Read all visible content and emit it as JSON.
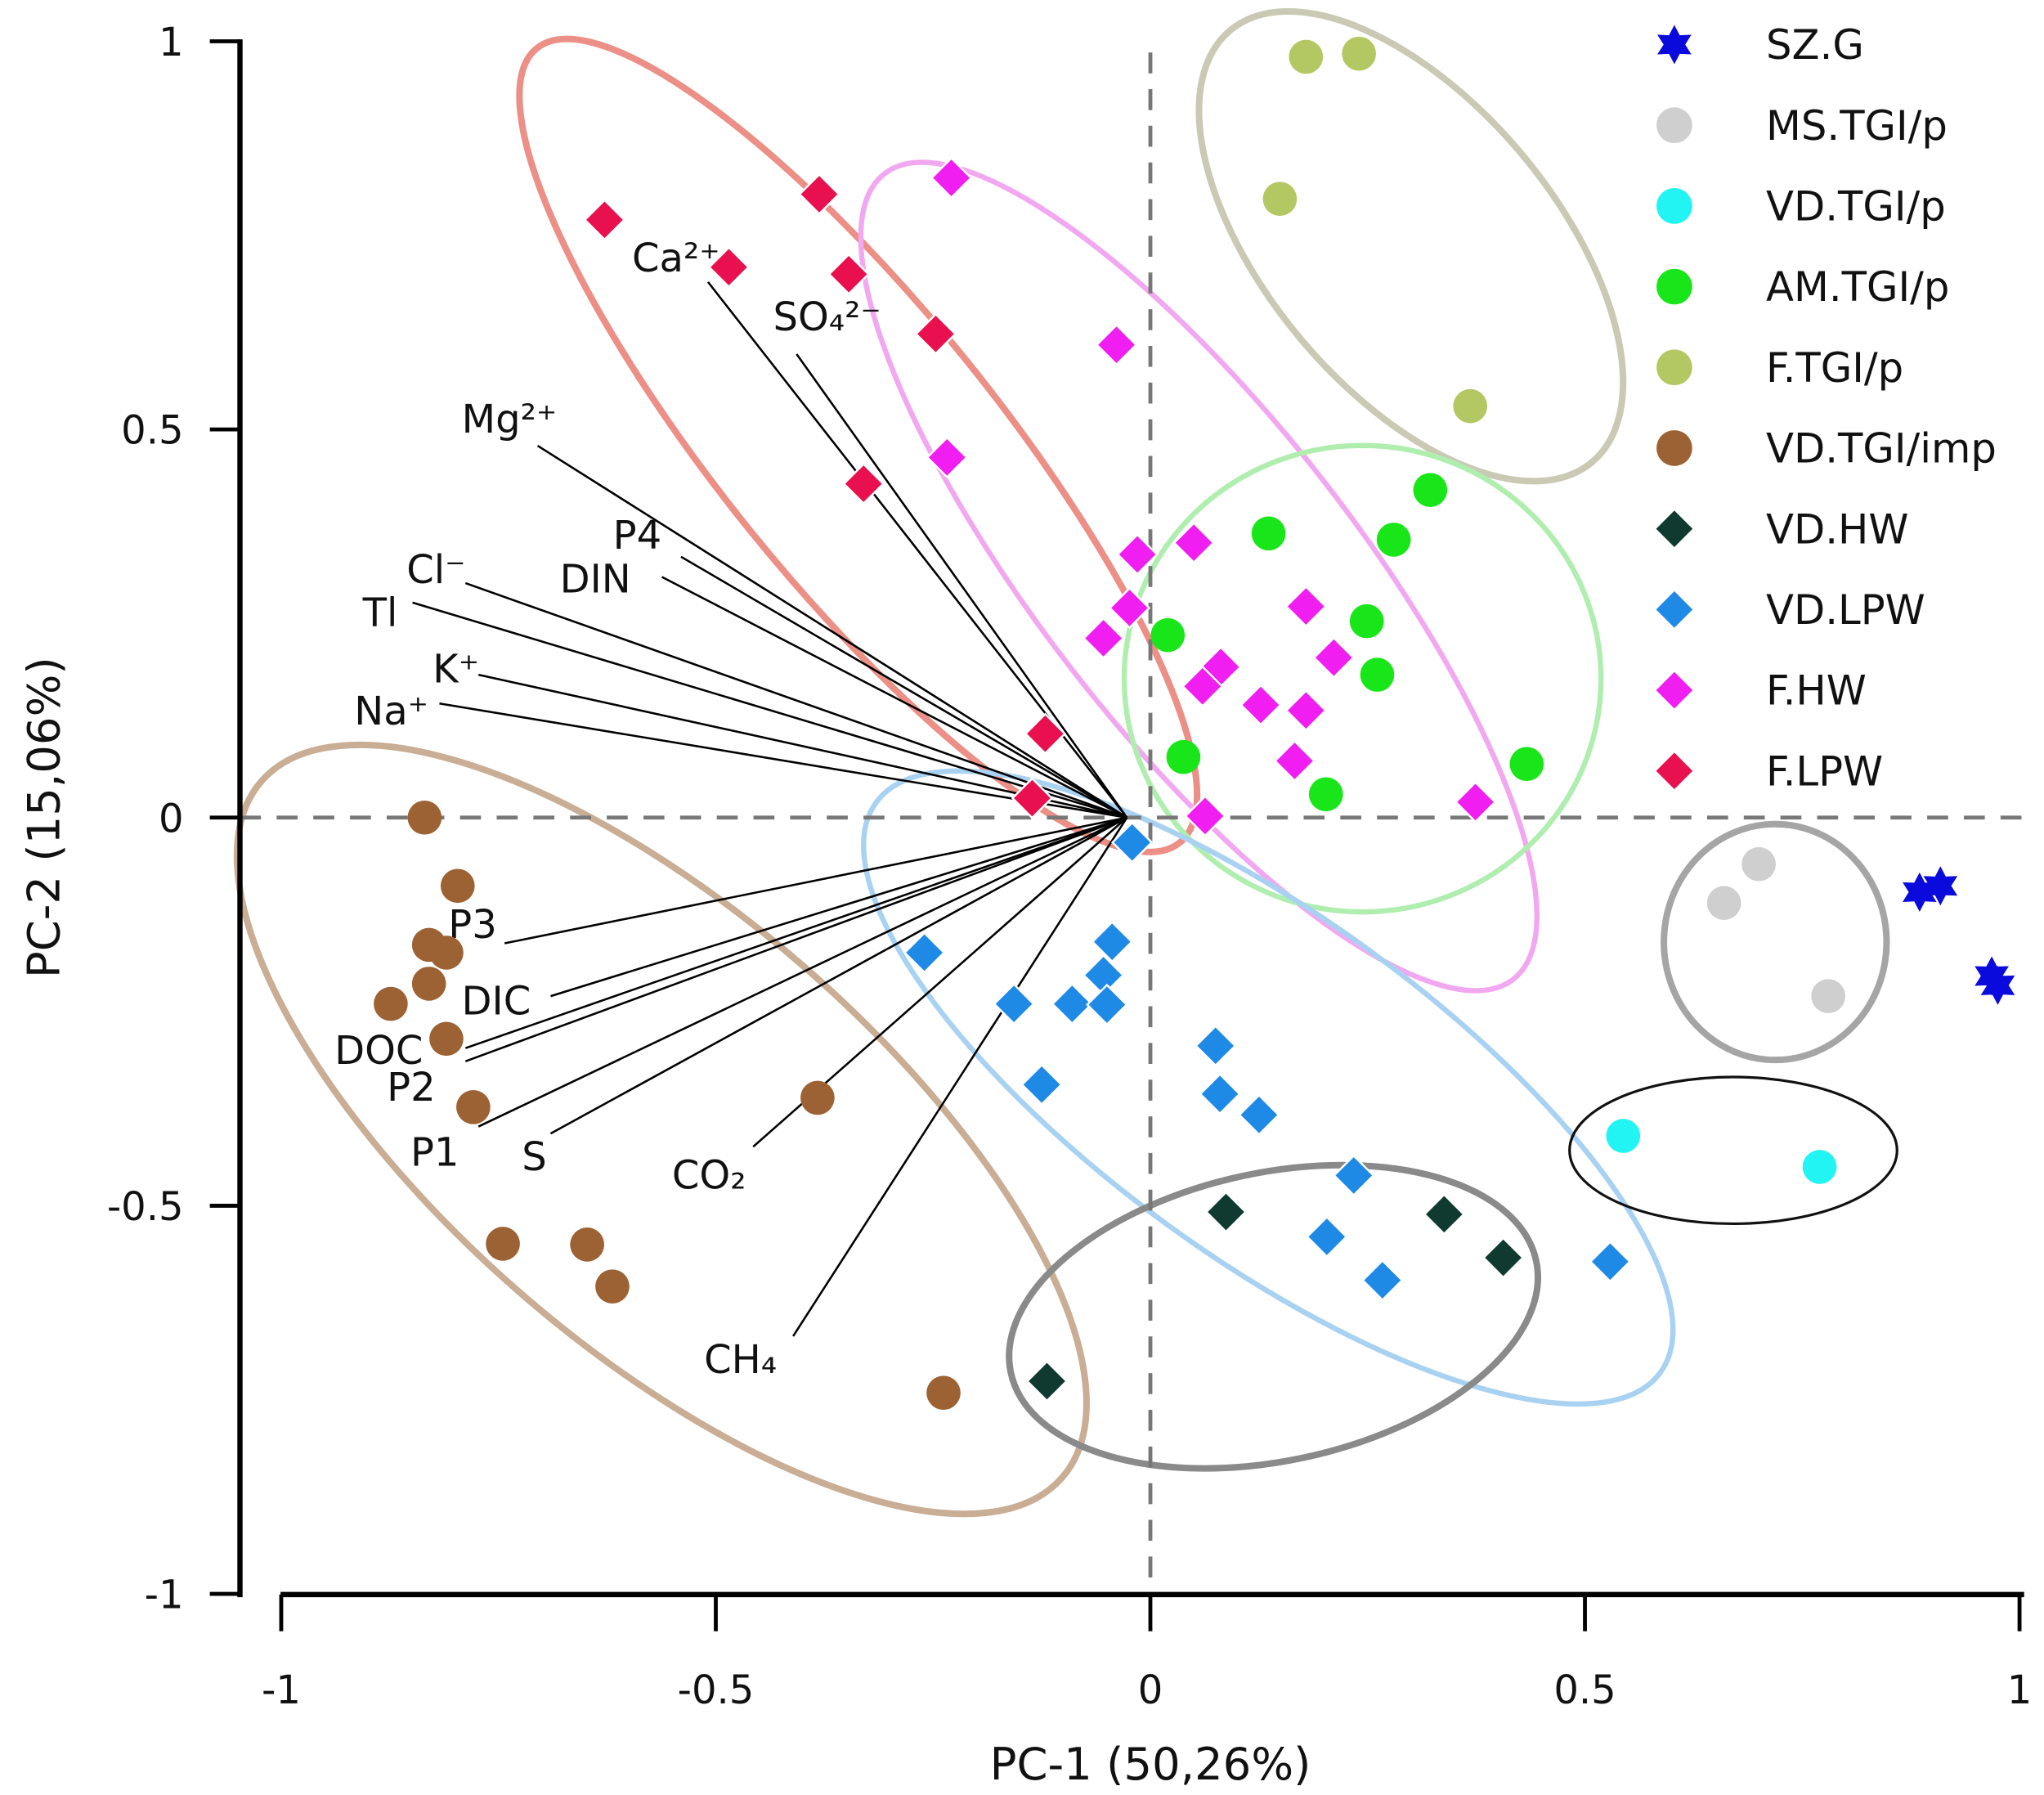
{
  "chart_data": {
    "type": "scatter",
    "title": "",
    "xlabel": "PC-1 (50,26%)",
    "ylabel": "PC-2 (15,06%)",
    "xlim": [
      -1,
      1
    ],
    "ylim": [
      -1,
      1
    ],
    "xticks": [
      "-1",
      "-0.5",
      "0",
      "0.5",
      "1"
    ],
    "yticks": [
      "1",
      "0.5",
      "0",
      "-0.5",
      "-1"
    ],
    "xtick_values": [
      -1,
      -0.5,
      0,
      0.5,
      1
    ],
    "ytick_values": [
      1,
      0.5,
      0,
      -0.5,
      -1
    ],
    "grid": false,
    "legend_position": "top-right",
    "series": [
      {
        "name": "SZ.G",
        "marker": "star",
        "color": "#0a0adc",
        "points": [
          [
            0.885,
            -0.096
          ],
          [
            0.909,
            -0.088
          ],
          [
            0.968,
            -0.204
          ],
          [
            0.975,
            -0.216
          ]
        ]
      },
      {
        "name": "MS.TGI/p",
        "marker": "circle",
        "color": "#cfcfcf",
        "points": [
          [
            0.7,
            -0.06
          ],
          [
            0.66,
            -0.11
          ],
          [
            0.78,
            -0.23
          ]
        ]
      },
      {
        "name": "VD.TGI/p",
        "marker": "circle",
        "color": "#22f4f4",
        "points": [
          [
            0.544,
            -0.41
          ],
          [
            0.77,
            -0.45
          ]
        ]
      },
      {
        "name": "AM.TGI/p",
        "marker": "circle",
        "color": "#19e619",
        "points": [
          [
            0.136,
            0.366
          ],
          [
            0.28,
            0.358
          ],
          [
            0.322,
            0.422
          ],
          [
            0.249,
            0.253
          ],
          [
            0.261,
            0.184
          ],
          [
            0.02,
            0.235
          ],
          [
            0.038,
            0.078
          ],
          [
            0.202,
            0.03
          ],
          [
            0.433,
            0.069
          ]
        ]
      },
      {
        "name": "F.TGI/p",
        "marker": "circle",
        "color": "#b3c862",
        "points": [
          [
            0.179,
            0.98
          ],
          [
            0.24,
            0.984
          ],
          [
            0.149,
            0.797
          ],
          [
            0.368,
            0.53
          ]
        ]
      },
      {
        "name": "VD.TGI/imp",
        "marker": "circle",
        "color": "#9c6233",
        "points": [
          [
            -0.835,
            0
          ],
          [
            -0.797,
            -0.088
          ],
          [
            -0.83,
            -0.164
          ],
          [
            -0.81,
            -0.174
          ],
          [
            -0.83,
            -0.214
          ],
          [
            -0.874,
            -0.24
          ],
          [
            -0.81,
            -0.285
          ],
          [
            -0.779,
            -0.373
          ],
          [
            -0.383,
            -0.361
          ],
          [
            -0.745,
            -0.549
          ],
          [
            -0.648,
            -0.55
          ],
          [
            -0.619,
            -0.604
          ],
          [
            -0.238,
            -0.741
          ]
        ]
      },
      {
        "name": "VD.HW",
        "marker": "diamond",
        "color": "#103a30",
        "points": [
          [
            0.087,
            -0.508
          ],
          [
            0.338,
            -0.511
          ],
          [
            0.406,
            -0.567
          ],
          [
            -0.119,
            -0.726
          ]
        ]
      },
      {
        "name": "VD.LPW",
        "marker": "diamond",
        "color": "#1e8ae6",
        "points": [
          [
            -0.021,
            -0.032
          ],
          [
            -0.26,
            -0.174
          ],
          [
            -0.044,
            -0.16
          ],
          [
            -0.054,
            -0.203
          ],
          [
            -0.09,
            -0.24
          ],
          [
            -0.05,
            -0.241
          ],
          [
            -0.157,
            -0.24
          ],
          [
            -0.125,
            -0.344
          ],
          [
            0.075,
            -0.294
          ],
          [
            0.08,
            -0.356
          ],
          [
            0.125,
            -0.383
          ],
          [
            0.234,
            -0.461
          ],
          [
            0.203,
            -0.54
          ],
          [
            0.267,
            -0.596
          ],
          [
            0.529,
            -0.572
          ]
        ]
      },
      {
        "name": "F.HW",
        "marker": "diamond",
        "color": "#f01ef0",
        "points": [
          [
            -0.229,
            0.824
          ],
          [
            -0.039,
            0.609
          ],
          [
            -0.234,
            0.464
          ],
          [
            -0.015,
            0.339
          ],
          [
            0.05,
            0.354
          ],
          [
            -0.024,
            0.27
          ],
          [
            -0.054,
            0.231
          ],
          [
            0.179,
            0.272
          ],
          [
            0.211,
            0.206
          ],
          [
            0.081,
            0.194
          ],
          [
            0.06,
            0.169
          ],
          [
            0.127,
            0.145
          ],
          [
            0.179,
            0.138
          ],
          [
            0.166,
            0.073
          ],
          [
            0.063,
            0.002
          ],
          [
            0.374,
            0.02
          ]
        ]
      },
      {
        "name": "F.LPW",
        "marker": "diamond",
        "color": "#e8104e",
        "points": [
          [
            -0.628,
            0.77
          ],
          [
            -0.381,
            0.803
          ],
          [
            -0.485,
            0.709
          ],
          [
            -0.347,
            0.7
          ],
          [
            -0.247,
            0.623
          ],
          [
            -0.33,
            0.43
          ],
          [
            -0.121,
            0.108
          ],
          [
            -0.136,
            0.025
          ]
        ]
      }
    ],
    "loadings_origin": [
      -0.027,
      0
    ],
    "loadings": [
      {
        "name": "Ca²⁺",
        "end": [
          -0.509,
          0.69
        ]
      },
      {
        "name": "SO₄²⁻",
        "end": [
          -0.407,
          0.597
        ]
      },
      {
        "name": "Mg²⁺",
        "end": [
          -0.705,
          0.479
        ]
      },
      {
        "name": "P4",
        "end": [
          -0.54,
          0.336
        ]
      },
      {
        "name": "DIN",
        "end": [
          -0.562,
          0.31
        ]
      },
      {
        "name": "Cl⁻",
        "end": [
          -0.788,
          0.302
        ]
      },
      {
        "name": "Tl",
        "end": [
          -0.849,
          0.277
        ]
      },
      {
        "name": "K⁺",
        "end": [
          -0.773,
          0.184
        ]
      },
      {
        "name": "Na⁺",
        "end": [
          -0.818,
          0.147
        ]
      },
      {
        "name": "P3",
        "end": [
          -0.743,
          -0.162
        ]
      },
      {
        "name": "DIC",
        "end": [
          -0.69,
          -0.23
        ]
      },
      {
        "name": "DOC",
        "end": [
          -0.788,
          -0.297
        ]
      },
      {
        "name": "P2",
        "end": [
          -0.788,
          -0.314
        ]
      },
      {
        "name": "P1",
        "end": [
          -0.773,
          -0.398
        ]
      },
      {
        "name": "S",
        "end": [
          -0.69,
          -0.407
        ]
      },
      {
        "name": "CO₂",
        "end": [
          -0.457,
          -0.424
        ]
      },
      {
        "name": "CH₄",
        "end": [
          -0.411,
          -0.668
        ]
      }
    ]
  }
}
